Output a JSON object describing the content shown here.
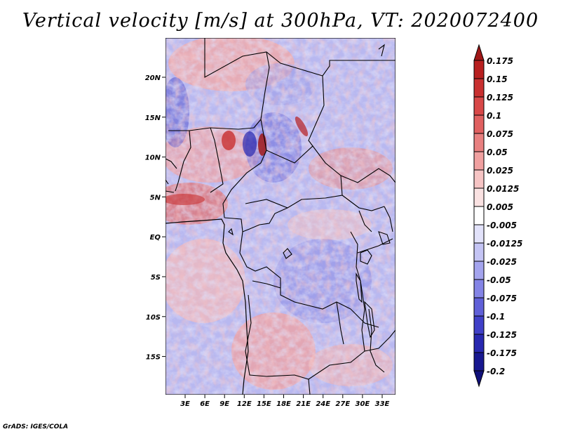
{
  "title": "Vertical velocity [m/s] at 300hPa, VT: 2020072400",
  "credit": "GrADS: IGES/COLA",
  "map": {
    "lat_labels": [
      "20N",
      "15N",
      "10N",
      "5N",
      "EQ",
      "5S",
      "10S",
      "15S"
    ],
    "lon_labels": [
      "3E",
      "6E",
      "9E",
      "12E",
      "15E",
      "18E",
      "21E",
      "24E",
      "27E",
      "30E",
      "33E"
    ]
  },
  "colorbar": {
    "levels": [
      "0.175",
      "0.15",
      "0.125",
      "0.1",
      "0.075",
      "0.05",
      "0.025",
      "0.0125",
      "0.005",
      "-0.005",
      "-0.0125",
      "-0.025",
      "-0.05",
      "-0.075",
      "-0.1",
      "-0.125",
      "-0.175",
      "-0.2"
    ],
    "colors": [
      "#a01818",
      "#b82020",
      "#c83030",
      "#d84848",
      "#e06060",
      "#e88080",
      "#f0a0a0",
      "#f6c4c4",
      "#fae2e2",
      "#ffffff",
      "#e2e2fa",
      "#c4c4f4",
      "#a4a4ee",
      "#8484e6",
      "#6060d8",
      "#4040c8",
      "#2828b0",
      "#181890",
      "#10107a"
    ]
  },
  "colors": {
    "positive": "#d84848",
    "negative": "#4848d8",
    "neutral": "#f4f4ff"
  }
}
